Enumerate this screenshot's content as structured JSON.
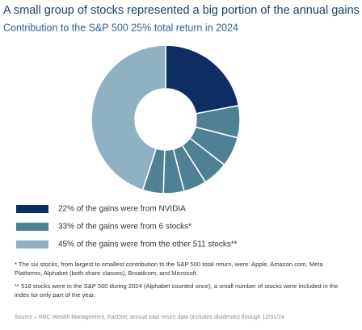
{
  "chart_data": {
    "type": "donut",
    "title": "A small group of stocks represented a big portion of the annual gains",
    "subtitle": "Contribution to the S&P 500 25% total return in 2024",
    "categories": [
      null,
      null,
      null,
      null,
      null,
      null,
      null,
      null
    ],
    "values": [
      22,
      7,
      6.5,
      5.5,
      5,
      4.5,
      4.5,
      45
    ],
    "colors": [
      "#0e2d63",
      "#4e8293",
      "#4e8293",
      "#4e8293",
      "#4e8293",
      "#4e8293",
      "#4e8293",
      "#8fb2c2"
    ],
    "legend": [
      {
        "color": "#0e2d63",
        "label": "22% of the gains were from NVIDIA"
      },
      {
        "color": "#4e8293",
        "label": "33% of the gains were from 6 stocks*"
      },
      {
        "color": "#8fb2c2",
        "label": "45% of the gains were from the other 511 stocks**"
      }
    ],
    "notes": [
      "* The six stocks, from largest to smallest contribution to the S&P 500 total return, were: Apple, Amazon.com, Meta Platforms, Alphabet (both share classes), Broadcom, and Microsoft.",
      "** 518 stocks were in the S&P 500 during 2024 (Alphabet counted once); a small number of stocks were included in the index for only part of the year."
    ],
    "source": "Source – RBC Wealth Management, FactSet; annual total return data (includes dividends) through 12/31/24"
  }
}
